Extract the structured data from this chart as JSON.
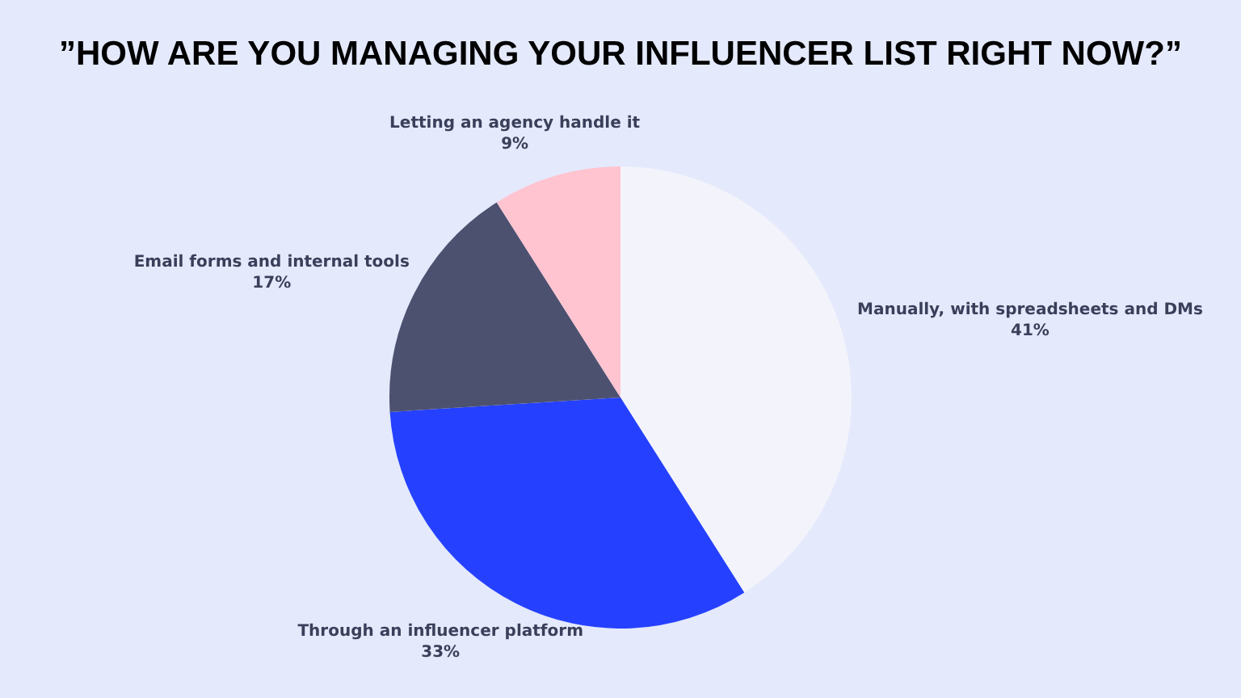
{
  "chart_data": {
    "type": "pie",
    "title": "”HOW ARE YOU MANAGING YOUR INFLUENCER LIST RIGHT NOW?”",
    "categories": [
      "Manually, with spreadsheets and DMs",
      "Through an influencer platform",
      "Email forms and internal tools",
      "Letting an agency handle it"
    ],
    "values": [
      41,
      33,
      17,
      9
    ],
    "value_labels": [
      "41%",
      "33%",
      "17%",
      "9%"
    ],
    "colors": [
      "#f3f4fb",
      "#2541ff",
      "#4d5170",
      "#ffc4d0"
    ],
    "legend": false
  }
}
